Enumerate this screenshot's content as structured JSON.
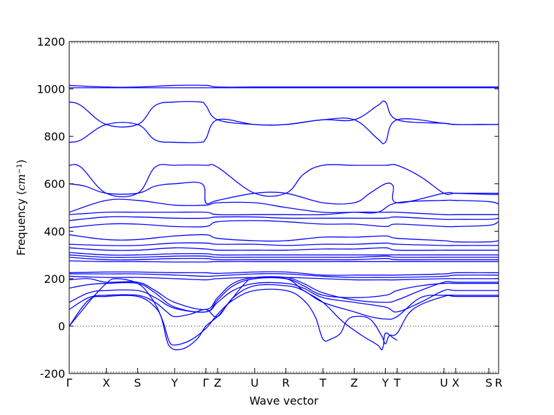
{
  "chart_data": {
    "type": "line",
    "title": "",
    "xlabel": "Wave vector",
    "ylabel": "Frequency (cm⁻¹)",
    "ylabel_parts": {
      "text": "Frequency (",
      "unit": "cm",
      "exp": "−1",
      "close": ")"
    },
    "ylim": [
      -200,
      1200
    ],
    "yticks": [
      -200,
      0,
      200,
      400,
      600,
      800,
      1000,
      1200
    ],
    "xlim": [
      0,
      11
    ],
    "xticks": [
      {
        "label": "Γ",
        "x": 0
      },
      {
        "label": "X",
        "x": 0.95
      },
      {
        "label": "S",
        "x": 1.75
      },
      {
        "label": "Y",
        "x": 2.7
      },
      {
        "label": "Γ",
        "x": 3.5
      },
      {
        "label": "Z",
        "x": 3.8
      },
      {
        "label": "U",
        "x": 4.75
      },
      {
        "label": "R",
        "x": 5.55
      },
      {
        "label": "T",
        "x": 6.5
      },
      {
        "label": "Z",
        "x": 7.3
      },
      {
        "label": "Y",
        "x": 8.1
      },
      {
        "label": "T",
        "x": 8.4
      },
      {
        "label": "U",
        "x": 9.6
      },
      {
        "label": "X",
        "x": 9.9
      },
      {
        "label": "S",
        "x": 10.75
      },
      {
        "label": "R",
        "x": 11.0
      }
    ],
    "zero_line": true,
    "series_color": "#0000ff",
    "series": [
      {
        "x": [
          0,
          0.95,
          1.75,
          2.7,
          3.5,
          3.8,
          4.75,
          5.55,
          6.5,
          7.3,
          8.1,
          8.4,
          9.6,
          9.9,
          10.75,
          11
        ],
        "y": [
          1015,
          1008,
          1008,
          1015,
          1015,
          1008,
          1008,
          1008,
          1008,
          1008,
          1008,
          1008,
          1008,
          1008,
          1008,
          1008
        ]
      },
      {
        "x": [
          0,
          0.95,
          1.75,
          2.7,
          3.5,
          3.8,
          4.75,
          5.55,
          6.5,
          7.3,
          8.1,
          8.4,
          9.6,
          9.9,
          10.75,
          11
        ],
        "y": [
          1005,
          1005,
          1005,
          1005,
          1005,
          1005,
          1005,
          1005,
          1005,
          1005,
          1005,
          1005,
          1005,
          1005,
          1005,
          1005
        ]
      },
      {
        "x": [
          0,
          0.3,
          0.95,
          1.75,
          2.2,
          2.7,
          3.35,
          3.5,
          3.8,
          4.75,
          5.55,
          6.5,
          7.3,
          7.9,
          8.1,
          8.4,
          9.6,
          9.9,
          10.75,
          11
        ],
        "y": [
          945,
          930,
          850,
          850,
          930,
          945,
          945,
          930,
          870,
          850,
          850,
          870,
          870,
          930,
          945,
          870,
          855,
          850,
          850,
          850
        ]
      },
      {
        "x": [
          0,
          0.3,
          0.95,
          1.75,
          2.2,
          2.7,
          3.35,
          3.5,
          3.8,
          4.75,
          5.55,
          6.5,
          7.3,
          7.9,
          8.1,
          8.4,
          9.6,
          9.9,
          10.75,
          11
        ],
        "y": [
          775,
          785,
          850,
          850,
          785,
          775,
          775,
          790,
          870,
          850,
          850,
          870,
          870,
          790,
          775,
          870,
          855,
          850,
          850,
          850
        ]
      },
      {
        "x": [
          0,
          0.3,
          0.95,
          1.75,
          2.2,
          2.7,
          3.5,
          3.8,
          4.75,
          5.55,
          6.0,
          6.5,
          7.3,
          8.1,
          8.4,
          9.0,
          9.6,
          9.9,
          10.75,
          11
        ],
        "y": [
          678,
          670,
          560,
          560,
          670,
          678,
          678,
          670,
          560,
          560,
          640,
          678,
          678,
          678,
          678,
          630,
          560,
          560,
          560,
          560
        ]
      },
      {
        "x": [
          0,
          0.4,
          0.95,
          1.75,
          2.2,
          2.7,
          3.4,
          3.5,
          3.8,
          4.75,
          5.55,
          6.5,
          7.3,
          7.7,
          8.1,
          8.3,
          8.4,
          9.6,
          9.9,
          10.75,
          11
        ],
        "y": [
          600,
          590,
          560,
          560,
          590,
          600,
          600,
          520,
          530,
          560,
          560,
          520,
          520,
          560,
          600,
          590,
          520,
          560,
          560,
          555,
          555
        ]
      },
      {
        "x": [
          0,
          0.95,
          1.75,
          2.7,
          3.5,
          3.8,
          4.75,
          5.55,
          6.5,
          7.3,
          7.9,
          8.4,
          9.6,
          9.9,
          10.75,
          11
        ],
        "y": [
          480,
          530,
          530,
          510,
          510,
          520,
          520,
          500,
          480,
          480,
          480,
          520,
          530,
          530,
          525,
          515
        ]
      },
      {
        "x": [
          0,
          0.95,
          1.75,
          2.7,
          3.5,
          3.8,
          4.75,
          5.55,
          6.5,
          7.3,
          8.1,
          8.4,
          9.6,
          9.9,
          10.75,
          11
        ],
        "y": [
          470,
          480,
          480,
          480,
          480,
          470,
          470,
          470,
          470,
          480,
          480,
          480,
          470,
          470,
          470,
          470
        ]
      },
      {
        "x": [
          0,
          0.95,
          1.75,
          2.7,
          3.5,
          3.8,
          4.75,
          5.55,
          6.5,
          7.3,
          8.1,
          8.4,
          9.6,
          9.9,
          10.75,
          11
        ],
        "y": [
          445,
          460,
          460,
          455,
          455,
          460,
          460,
          455,
          455,
          455,
          455,
          460,
          450,
          450,
          450,
          455
        ]
      },
      {
        "x": [
          0,
          0.95,
          1.75,
          2.7,
          3.5,
          3.8,
          4.75,
          5.55,
          6.5,
          7.3,
          8.1,
          8.4,
          9.6,
          9.9,
          10.75,
          11
        ],
        "y": [
          415,
          430,
          430,
          420,
          420,
          440,
          445,
          440,
          430,
          430,
          420,
          430,
          420,
          420,
          425,
          440
        ]
      },
      {
        "x": [
          0,
          0.95,
          1.75,
          2.7,
          3.5,
          3.8,
          4.75,
          5.55,
          6.5,
          7.3,
          8.1,
          8.4,
          9.6,
          9.9,
          10.75,
          11
        ],
        "y": [
          385,
          365,
          365,
          380,
          385,
          370,
          360,
          360,
          375,
          375,
          380,
          370,
          360,
          355,
          355,
          360
        ]
      },
      {
        "x": [
          0,
          0.95,
          1.75,
          2.7,
          3.5,
          3.8,
          4.75,
          5.55,
          6.5,
          7.3,
          8.1,
          8.4,
          9.6,
          9.9,
          10.75,
          11
        ],
        "y": [
          345,
          340,
          340,
          350,
          350,
          345,
          345,
          340,
          345,
          345,
          350,
          345,
          340,
          340,
          340,
          340
        ]
      },
      {
        "x": [
          0,
          0.95,
          1.75,
          2.7,
          3.5,
          3.8,
          4.75,
          5.55,
          6.5,
          7.3,
          8.1,
          8.4,
          9.6,
          9.9,
          10.75,
          11
        ],
        "y": [
          330,
          320,
          320,
          330,
          325,
          320,
          320,
          320,
          325,
          325,
          330,
          320,
          320,
          320,
          320,
          320
        ]
      },
      {
        "x": [
          0,
          0.95,
          1.75,
          2.7,
          3.5,
          3.8,
          4.75,
          5.55,
          6.5,
          7.3,
          8.1,
          8.4,
          9.6,
          9.9,
          10.75,
          11
        ],
        "y": [
          310,
          300,
          300,
          305,
          305,
          300,
          300,
          300,
          300,
          300,
          300,
          300,
          300,
          300,
          300,
          300
        ]
      },
      {
        "x": [
          0,
          0.95,
          1.75,
          2.7,
          3.5,
          3.8,
          4.75,
          5.55,
          6.5,
          7.3,
          8.1,
          8.4,
          9.6,
          9.9,
          10.75,
          11
        ],
        "y": [
          300,
          290,
          290,
          295,
          295,
          290,
          290,
          290,
          290,
          290,
          295,
          290,
          290,
          290,
          290,
          290
        ]
      },
      {
        "x": [
          0,
          0.95,
          1.75,
          2.7,
          3.5,
          3.8,
          4.75,
          5.55,
          6.5,
          7.3,
          8.1,
          8.4,
          9.6,
          9.9,
          10.75,
          11
        ],
        "y": [
          290,
          280,
          280,
          285,
          285,
          280,
          280,
          280,
          280,
          280,
          285,
          280,
          280,
          280,
          280,
          280
        ]
      },
      {
        "x": [
          0,
          0.95,
          1.75,
          2.7,
          3.5,
          3.8,
          4.75,
          5.55,
          6.5,
          7.3,
          8.1,
          8.4,
          9.6,
          9.9,
          10.75,
          11
        ],
        "y": [
          275,
          272,
          272,
          270,
          270,
          272,
          272,
          272,
          272,
          272,
          272,
          272,
          272,
          272,
          272,
          272
        ]
      },
      {
        "x": [
          0,
          0.95,
          1.75,
          2.7,
          3.5,
          3.8,
          4.75,
          5.55,
          6.5,
          7.3,
          8.1,
          8.4,
          9.6,
          9.9,
          10.75,
          11
        ],
        "y": [
          225,
          228,
          228,
          225,
          225,
          222,
          228,
          228,
          215,
          215,
          215,
          215,
          220,
          225,
          225,
          225
        ]
      },
      {
        "x": [
          0,
          0.95,
          1.75,
          2.7,
          3.5,
          3.8,
          4.75,
          5.55,
          6.5,
          7.3,
          8.1,
          8.4,
          9.6,
          9.9,
          10.75,
          11
        ],
        "y": [
          220,
          220,
          220,
          215,
          210,
          212,
          220,
          220,
          210,
          205,
          205,
          205,
          210,
          215,
          215,
          215
        ]
      },
      {
        "x": [
          0,
          0.95,
          1.75,
          2.7,
          3.5,
          3.8,
          4.75,
          5.55,
          6.5,
          7.3,
          8.1,
          8.4,
          9.6,
          9.9,
          10.75,
          11
        ],
        "y": [
          210,
          205,
          205,
          200,
          195,
          200,
          205,
          205,
          200,
          195,
          195,
          195,
          200,
          200,
          200,
          200
        ]
      },
      {
        "x": [
          0,
          0.5,
          0.95,
          1.75,
          2.2,
          2.7,
          3.5,
          3.8,
          4.2,
          4.75,
          5.55,
          6.0,
          6.5,
          7.3,
          8.1,
          8.4,
          9.0,
          9.6,
          9.9,
          10.75,
          11
        ],
        "y": [
          195,
          200,
          185,
          185,
          150,
          100,
          70,
          120,
          180,
          205,
          205,
          180,
          140,
          110,
          100,
          110,
          150,
          185,
          185,
          185,
          185
        ]
      },
      {
        "x": [
          0,
          0.5,
          0.95,
          1.75,
          2.2,
          2.7,
          3.5,
          3.8,
          4.2,
          4.75,
          5.55,
          6.0,
          6.5,
          7.3,
          8.1,
          8.4,
          9.0,
          9.6,
          9.9,
          10.75,
          11
        ],
        "y": [
          160,
          175,
          180,
          180,
          140,
          80,
          60,
          110,
          170,
          200,
          200,
          170,
          130,
          120,
          130,
          150,
          170,
          180,
          180,
          180,
          180
        ]
      },
      {
        "x": [
          0,
          0.5,
          0.95,
          1.75,
          2.2,
          2.7,
          3.5,
          3.8,
          4.2,
          4.75,
          5.55,
          6.0,
          6.5,
          7.3,
          8.1,
          8.4,
          9.0,
          9.6,
          9.9,
          10.75,
          11
        ],
        "y": [
          100,
          140,
          150,
          150,
          120,
          75,
          60,
          100,
          150,
          180,
          180,
          160,
          120,
          100,
          80,
          60,
          100,
          150,
          150,
          150,
          150
        ]
      },
      {
        "x": [
          0,
          0.5,
          0.95,
          1.75,
          2.2,
          2.5,
          2.7,
          3.1,
          3.5,
          3.8,
          4.2,
          4.75,
          5.55,
          6.0,
          6.5,
          7.3,
          7.7,
          8.1,
          8.4,
          9.0,
          9.6,
          9.9,
          10.75,
          11
        ],
        "y": [
          70,
          120,
          130,
          130,
          100,
          60,
          40,
          50,
          70,
          40,
          120,
          170,
          170,
          150,
          100,
          60,
          40,
          30,
          40,
          120,
          130,
          130,
          130,
          130
        ]
      },
      {
        "x": [
          0,
          0.5,
          0.95,
          1.75,
          2.2,
          2.4,
          2.55,
          2.7,
          3.1,
          3.5,
          3.8,
          4.2,
          4.75,
          5.55,
          6.0,
          6.3,
          6.5,
          6.7,
          6.95,
          7.1,
          7.3,
          7.7,
          8.0,
          8.1,
          8.2,
          8.4,
          8.8,
          9.6,
          9.9,
          10.75,
          11
        ],
        "y": [
          0,
          110,
          125,
          125,
          80,
          20,
          -60,
          -80,
          -60,
          -10,
          50,
          110,
          150,
          150,
          110,
          40,
          -55,
          -55,
          -30,
          20,
          40,
          30,
          -40,
          -75,
          -40,
          -30,
          70,
          125,
          125,
          125,
          125
        ]
      },
      {
        "x": [
          0,
          0.3,
          0.6,
          0.95,
          1.2,
          1.75,
          2.1,
          2.35,
          2.5,
          2.6,
          2.75,
          3.0,
          3.3,
          3.5,
          3.8,
          4.1,
          4.5,
          4.75,
          5.55,
          6.0,
          6.5,
          7.0,
          7.5,
          7.9,
          8.0,
          8.05,
          8.1,
          8.3,
          8.4
        ],
        "y": [
          0,
          60,
          120,
          180,
          200,
          180,
          120,
          40,
          -60,
          -90,
          -100,
          -90,
          -50,
          0,
          40,
          100,
          180,
          200,
          200,
          150,
          100,
          20,
          -40,
          -80,
          -100,
          -80,
          -30,
          -50,
          -60
        ]
      }
    ]
  }
}
